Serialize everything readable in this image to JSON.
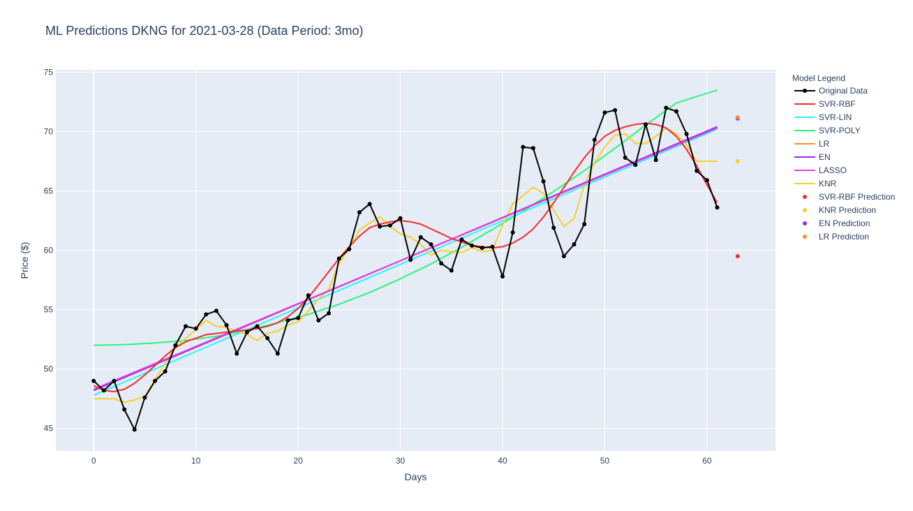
{
  "chart_data": {
    "type": "line",
    "title": "ML Predictions DKNG for 2021-03-28 (Data Period: 3mo)",
    "xlabel": "Days",
    "ylabel": "Price ($)",
    "xlim": [
      -3.7,
      66.7
    ],
    "ylim": [
      43.1,
      75.2
    ],
    "x_ticks": [
      0,
      10,
      20,
      30,
      40,
      50,
      60
    ],
    "y_ticks": [
      45,
      50,
      55,
      60,
      65,
      70,
      75
    ],
    "grid": true,
    "legend_title": "Model Legend",
    "legend_position": "right",
    "series": [
      {
        "name": "Original Data",
        "color": "#000000",
        "mode": "lines+markers",
        "x": [
          0,
          1,
          2,
          3,
          4,
          5,
          6,
          7,
          8,
          9,
          10,
          11,
          12,
          13,
          14,
          15,
          16,
          17,
          18,
          19,
          20,
          21,
          22,
          23,
          24,
          25,
          26,
          27,
          28,
          29,
          30,
          31,
          32,
          33,
          34,
          35,
          36,
          37,
          38,
          39,
          40,
          41,
          42,
          43,
          44,
          45,
          46,
          47,
          48,
          49,
          50,
          51,
          52,
          53,
          54,
          55,
          56,
          57,
          58,
          59,
          60,
          61
        ],
        "y": [
          49.0,
          48.2,
          49.0,
          46.6,
          44.9,
          47.6,
          49.0,
          49.8,
          52.0,
          53.6,
          53.4,
          54.6,
          54.9,
          53.7,
          51.3,
          53.1,
          53.6,
          52.6,
          51.3,
          54.1,
          54.3,
          56.2,
          54.1,
          54.7,
          59.3,
          60.1,
          63.2,
          63.9,
          62.0,
          62.1,
          62.7,
          59.2,
          61.1,
          60.5,
          58.9,
          58.3,
          60.9,
          60.4,
          60.2,
          60.3,
          57.8,
          61.5,
          68.7,
          68.6,
          65.8,
          61.9,
          59.5,
          60.5,
          62.2,
          69.3,
          71.6,
          71.8,
          67.8,
          67.2,
          70.6,
          67.6,
          72.0,
          71.7,
          69.8,
          66.7,
          65.9,
          63.6
        ]
      },
      {
        "name": "SVR-RBF",
        "color": "#f52a2a",
        "mode": "lines",
        "x": [
          0,
          1,
          2,
          3,
          4,
          5,
          6,
          7,
          8,
          9,
          10,
          11,
          12,
          13,
          14,
          15,
          16,
          17,
          18,
          19,
          20,
          21,
          22,
          23,
          24,
          25,
          26,
          27,
          28,
          29,
          30,
          31,
          32,
          33,
          34,
          35,
          36,
          37,
          38,
          39,
          40,
          41,
          42,
          43,
          44,
          45,
          46,
          47,
          48,
          49,
          50,
          51,
          52,
          53,
          54,
          55,
          56,
          57,
          58,
          59,
          60,
          61
        ],
        "y": [
          48.6,
          48.2,
          48.1,
          48.3,
          48.8,
          49.5,
          50.3,
          51.1,
          51.8,
          52.3,
          52.6,
          52.9,
          53.0,
          53.1,
          53.2,
          53.3,
          53.4,
          53.6,
          53.9,
          54.4,
          55.1,
          56.0,
          57.1,
          58.2,
          59.3,
          60.3,
          61.2,
          61.9,
          62.2,
          62.4,
          62.5,
          62.4,
          62.2,
          61.8,
          61.4,
          61.0,
          60.7,
          60.4,
          60.3,
          60.2,
          60.3,
          60.6,
          61.1,
          61.8,
          62.8,
          64.0,
          65.3,
          66.6,
          67.8,
          68.8,
          69.6,
          70.1,
          70.4,
          70.6,
          70.7,
          70.6,
          70.3,
          69.6,
          68.5,
          67.1,
          65.5,
          64.0
        ]
      },
      {
        "name": "SVR-LIN",
        "color": "#2af5f5",
        "mode": "lines",
        "x": [
          0,
          61
        ],
        "y": [
          47.8,
          70.2
        ]
      },
      {
        "name": "SVR-POLY",
        "color": "#2af57a",
        "mode": "lines",
        "x": [
          0,
          3,
          6,
          9,
          12,
          15,
          18,
          21,
          24,
          27,
          30,
          33,
          36,
          39,
          42,
          45,
          48,
          51,
          54,
          57,
          61
        ],
        "y": [
          52.0,
          52.05,
          52.2,
          52.4,
          52.75,
          53.25,
          53.9,
          54.6,
          55.45,
          56.45,
          57.6,
          58.85,
          60.25,
          61.75,
          63.3,
          64.95,
          66.7,
          68.6,
          70.55,
          72.4,
          73.5
        ]
      },
      {
        "name": "LR",
        "color": "#f5902a",
        "mode": "lines",
        "x": [
          0,
          61
        ],
        "y": [
          48.2,
          70.4
        ]
      },
      {
        "name": "EN",
        "color": "#902af5",
        "mode": "lines",
        "x": [
          0,
          61
        ],
        "y": [
          48.2,
          70.4
        ]
      },
      {
        "name": "LASSO",
        "color": "#e53ee0",
        "mode": "lines",
        "x": [
          0,
          61
        ],
        "y": [
          48.3,
          70.3
        ]
      },
      {
        "name": "KNR",
        "color": "#f5d02a",
        "mode": "lines",
        "x": [
          0,
          1,
          2,
          3,
          4,
          5,
          6,
          7,
          8,
          9,
          10,
          11,
          12,
          13,
          14,
          15,
          16,
          17,
          18,
          19,
          20,
          21,
          22,
          23,
          24,
          25,
          26,
          27,
          28,
          29,
          30,
          31,
          32,
          33,
          34,
          35,
          36,
          37,
          38,
          39,
          40,
          41,
          42,
          43,
          44,
          45,
          46,
          47,
          48,
          49,
          50,
          51,
          52,
          53,
          54,
          55,
          56,
          57,
          58,
          59,
          60,
          61
        ],
        "y": [
          47.5,
          47.5,
          47.5,
          47.2,
          47.4,
          47.7,
          49.1,
          50.5,
          51.8,
          52.6,
          53.3,
          54.1,
          53.6,
          53.5,
          53.2,
          52.9,
          52.4,
          53.0,
          53.2,
          53.7,
          54.0,
          54.9,
          55.9,
          56.7,
          58.9,
          60.2,
          61.7,
          62.3,
          62.8,
          62.0,
          61.4,
          61.1,
          60.5,
          59.6,
          60.0,
          59.9,
          59.8,
          60.2,
          59.9,
          60.0,
          62.1,
          63.9,
          64.6,
          65.3,
          64.8,
          63.4,
          62.0,
          62.7,
          65.5,
          67.4,
          68.7,
          69.7,
          69.8,
          69.0,
          69.0,
          69.6,
          70.3,
          69.8,
          68.9,
          67.5,
          67.5,
          67.5
        ]
      }
    ],
    "predictions": [
      {
        "name": "SVR-RBF Prediction",
        "color": "#f52a2a",
        "x": 63,
        "y": 59.5
      },
      {
        "name": "KNR Prediction",
        "color": "#f5d02a",
        "x": 63,
        "y": 67.5
      },
      {
        "name": "EN Prediction",
        "color": "#902af5",
        "x": 63,
        "y": 71.1
      },
      {
        "name": "LR Prediction",
        "color": "#f5902a",
        "x": 63,
        "y": 71.2
      }
    ]
  }
}
